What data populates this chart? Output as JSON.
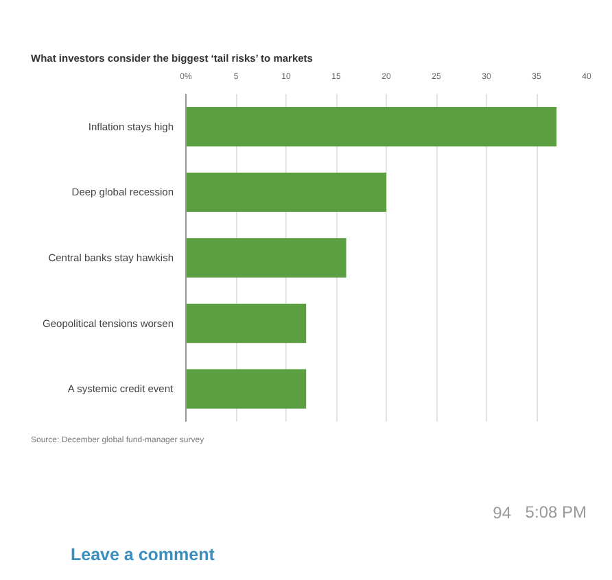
{
  "chart_data": {
    "type": "bar",
    "orientation": "horizontal",
    "title": "What investors consider the biggest ‘tail risks’ to markets",
    "categories": [
      "Inflation stays high",
      "Deep global recession",
      "Central banks stay hawkish",
      "Geopolitical tensions worsen",
      "A systemic credit event"
    ],
    "values": [
      37,
      20,
      16,
      12,
      12
    ],
    "color": "#5c9e42",
    "xlim": [
      0,
      40
    ],
    "xticks": [
      {
        "value": 0,
        "label": "0%"
      },
      5,
      10,
      15,
      20,
      25,
      30,
      35,
      40
    ],
    "grid": "x",
    "annotations": [
      "Source: December global fund-manager survey",
      "94",
      "5:08 PM",
      "Leave a comment"
    ]
  }
}
